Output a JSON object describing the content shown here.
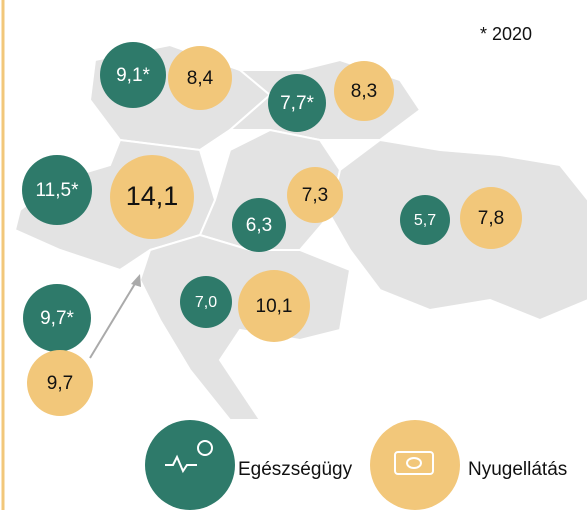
{
  "note": "* 2020",
  "bubbles": [
    {
      "label": "9,1*",
      "kind": "health"
    },
    {
      "label": "8,4",
      "kind": "pension"
    },
    {
      "label": "7,7*",
      "kind": "health"
    },
    {
      "label": "8,3",
      "kind": "pension"
    },
    {
      "label": "11,5*",
      "kind": "health"
    },
    {
      "label": "14,1",
      "kind": "pension"
    },
    {
      "label": "7,3",
      "kind": "pension"
    },
    {
      "label": "6,3",
      "kind": "health"
    },
    {
      "label": "5,7",
      "kind": "health"
    },
    {
      "label": "7,8",
      "kind": "pension"
    },
    {
      "label": "7,0",
      "kind": "health"
    },
    {
      "label": "10,1",
      "kind": "pension"
    },
    {
      "label": "9,7*",
      "kind": "health"
    },
    {
      "label": "9,7",
      "kind": "pension"
    }
  ],
  "legend": [
    {
      "label": "Egészségügy",
      "kind": "health"
    },
    {
      "label": "Nyugellátás",
      "kind": "pension"
    }
  ]
}
